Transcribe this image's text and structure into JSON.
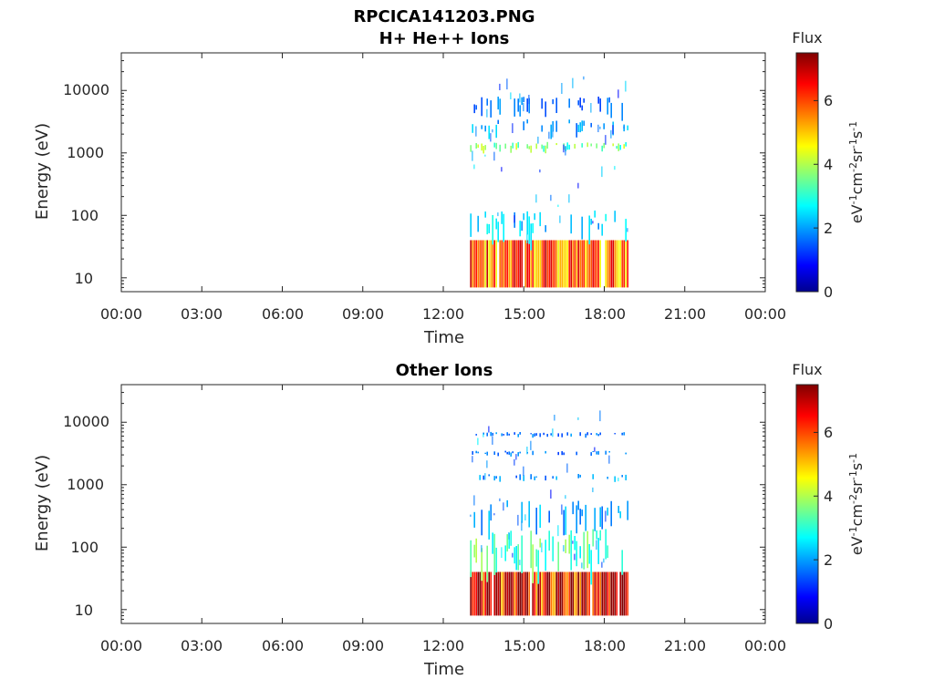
{
  "figure": {
    "title": "RPCICA141203.PNG"
  },
  "chart_data": [
    {
      "type": "heatmap",
      "title": "H+ He++ Ions",
      "xlabel": "Time",
      "ylabel": "Energy (eV)",
      "x_ticks": [
        "00:00",
        "03:00",
        "06:00",
        "09:00",
        "12:00",
        "15:00",
        "18:00",
        "21:00",
        "00:00"
      ],
      "y_ticks": [
        "10",
        "100",
        "1000",
        "10000"
      ],
      "y_scale": "log",
      "ylim": [
        6,
        40000
      ],
      "xlim_hours": [
        0,
        24
      ],
      "data_window_hours": [
        13.0,
        18.9
      ],
      "colorbar": {
        "title": "Flux",
        "label": "eV-1cm-2sr-1s-1",
        "ticks": [
          "0",
          "2",
          "4",
          "6"
        ],
        "range": [
          0,
          7.5
        ],
        "colormap": "jet"
      },
      "bands": [
        {
          "energy_low": 7,
          "energy_high": 40,
          "level": 6.0
        },
        {
          "energy_low": 40,
          "energy_high": 120,
          "level": 2.5
        },
        {
          "energy_low": 1100,
          "energy_high": 1500,
          "level": 3.8
        },
        {
          "energy_low": 2000,
          "energy_high": 3500,
          "level": 2.2
        },
        {
          "energy_low": 4000,
          "energy_high": 8000,
          "level": 1.8
        }
      ]
    },
    {
      "type": "heatmap",
      "title": "Other Ions",
      "xlabel": "Time",
      "ylabel": "Energy (eV)",
      "x_ticks": [
        "00:00",
        "03:00",
        "06:00",
        "09:00",
        "12:00",
        "15:00",
        "18:00",
        "21:00",
        "00:00"
      ],
      "y_ticks": [
        "10",
        "100",
        "1000",
        "10000"
      ],
      "y_scale": "log",
      "ylim": [
        6,
        40000
      ],
      "xlim_hours": [
        0,
        24
      ],
      "data_window_hours": [
        13.0,
        18.9
      ],
      "colorbar": {
        "title": "Flux",
        "label": "eV-1cm-2sr-1s-1",
        "ticks": [
          "0",
          "2",
          "4",
          "6"
        ],
        "range": [
          0,
          7.5
        ],
        "colormap": "jet"
      },
      "bands": [
        {
          "energy_low": 8,
          "energy_high": 40,
          "level": 6.8
        },
        {
          "energy_low": 40,
          "energy_high": 200,
          "level": 3.5
        },
        {
          "energy_low": 200,
          "energy_high": 600,
          "level": 2.2
        },
        {
          "energy_low": 1200,
          "energy_high": 1500,
          "level": 2.0
        },
        {
          "energy_low": 3000,
          "energy_high": 3500,
          "level": 1.8
        },
        {
          "energy_low": 6000,
          "energy_high": 7000,
          "level": 1.8
        }
      ]
    }
  ]
}
